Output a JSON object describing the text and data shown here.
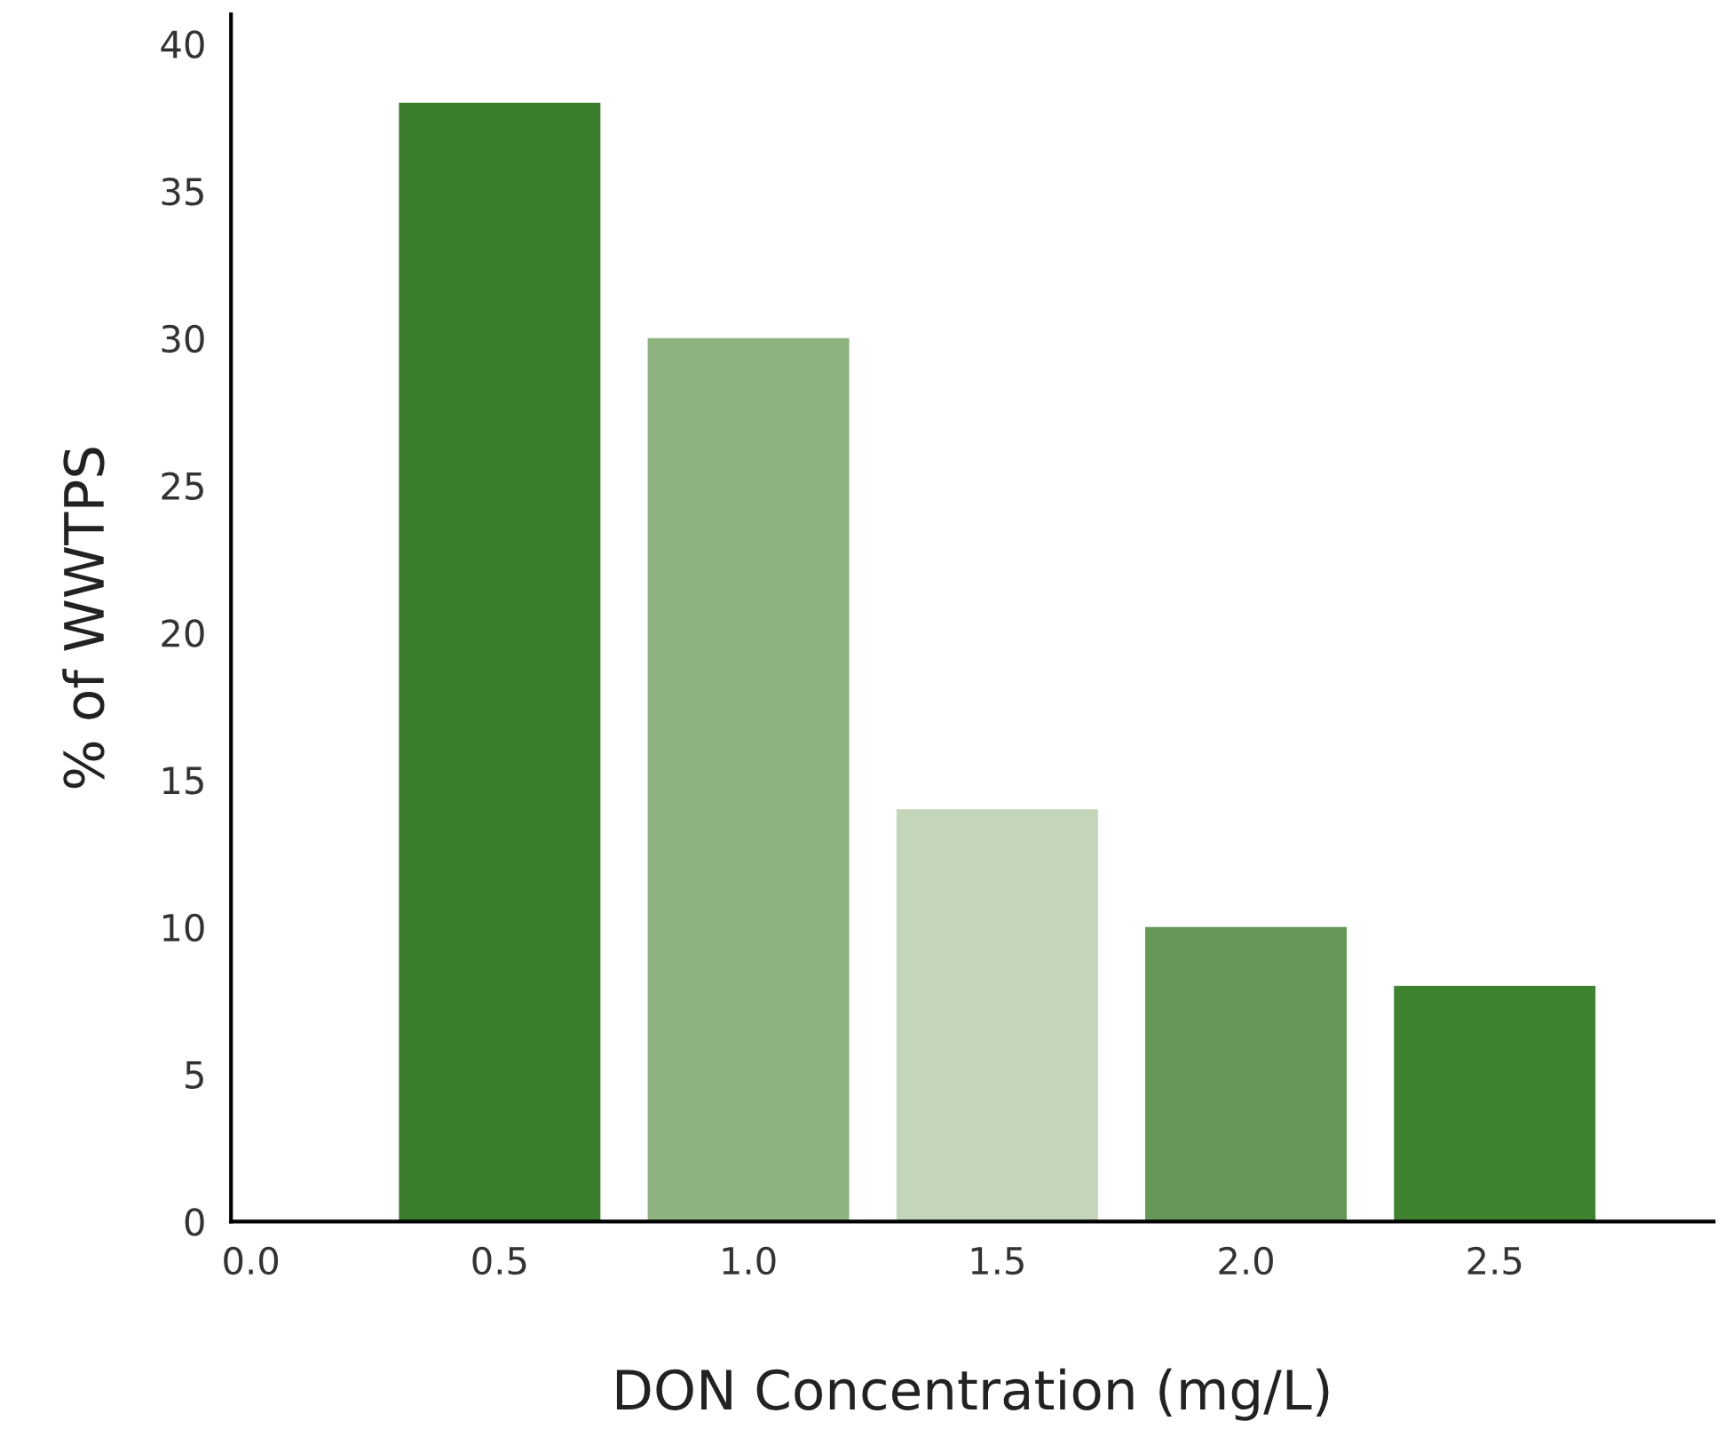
{
  "chart_data": {
    "type": "bar",
    "xlabel": "DON Concentration (mg/L)",
    "ylabel": "% of WWTPS",
    "categories": [
      "0.0",
      "0.5",
      "1.0",
      "1.5",
      "2.0",
      "2.5"
    ],
    "values": [
      null,
      38,
      30,
      14,
      10,
      8
    ],
    "colors": [
      "#3a7d2c",
      "#3a7d2c",
      "#8fb37f",
      "#c3d6ba",
      "#66985a",
      "#3f822f"
    ],
    "ylim": [
      0,
      41
    ],
    "yticks": [
      0,
      5,
      10,
      15,
      20,
      25,
      30,
      35,
      40
    ],
    "grid": false
  }
}
